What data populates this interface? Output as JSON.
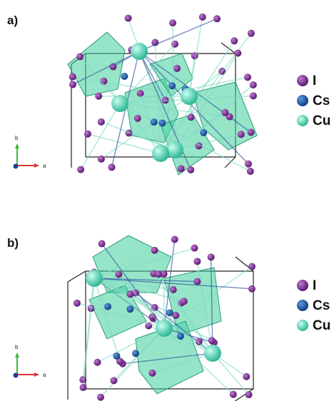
{
  "panels": [
    {
      "label": "a)",
      "legend": [
        "I",
        "Cs",
        "Cu"
      ],
      "axes": {
        "vertical": "b",
        "horizontal": "a"
      }
    },
    {
      "label": "b)",
      "legend": [
        "I",
        "Cs",
        "Cu"
      ],
      "axes": {
        "vertical": "b",
        "horizontal": "a"
      }
    }
  ]
}
